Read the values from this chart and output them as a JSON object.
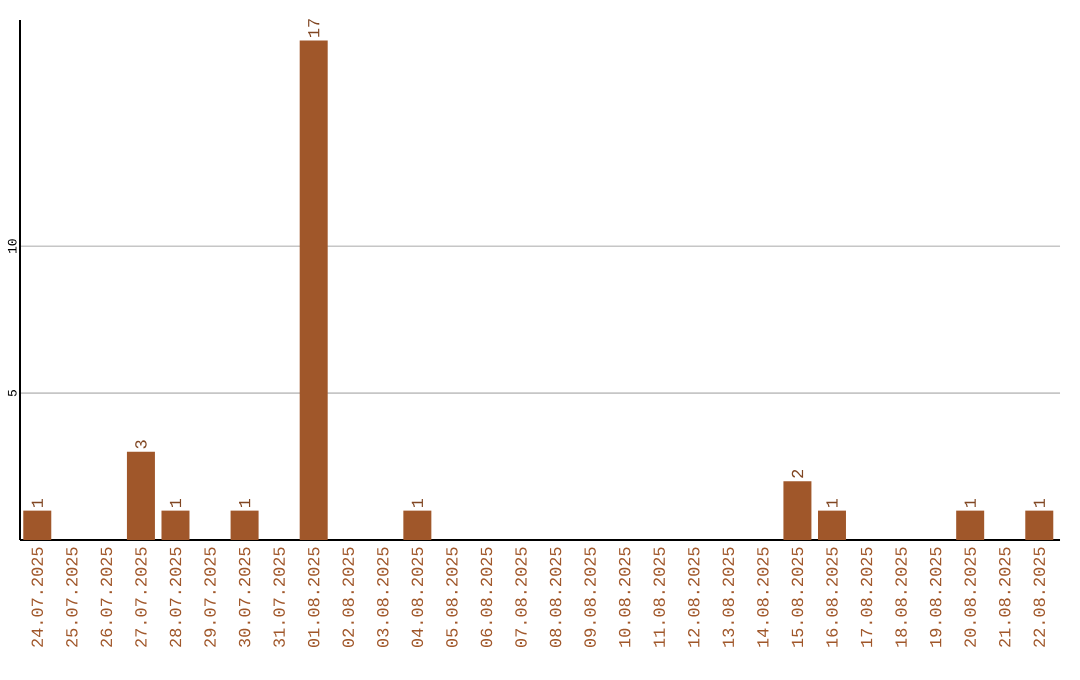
{
  "chart_data": {
    "type": "bar",
    "categories": [
      "24.07.2025",
      "25.07.2025",
      "26.07.2025",
      "27.07.2025",
      "28.07.2025",
      "29.07.2025",
      "30.07.2025",
      "31.07.2025",
      "01.08.2025",
      "02.08.2025",
      "03.08.2025",
      "04.08.2025",
      "05.08.2025",
      "06.08.2025",
      "07.08.2025",
      "08.08.2025",
      "09.08.2025",
      "10.08.2025",
      "11.08.2025",
      "12.08.2025",
      "13.08.2025",
      "14.08.2025",
      "15.08.2025",
      "16.08.2025",
      "17.08.2025",
      "18.08.2025",
      "19.08.2025",
      "20.08.2025",
      "21.08.2025",
      "22.08.2025"
    ],
    "values": [
      1,
      0,
      0,
      3,
      1,
      0,
      1,
      0,
      17,
      0,
      0,
      1,
      0,
      0,
      0,
      0,
      0,
      0,
      0,
      0,
      0,
      0,
      2,
      1,
      0,
      0,
      0,
      1,
      0,
      1
    ],
    "value_labels": [
      "1",
      null,
      null,
      "3",
      "1",
      null,
      "1",
      null,
      "17",
      null,
      null,
      "1",
      null,
      null,
      null,
      null,
      null,
      null,
      null,
      null,
      null,
      null,
      "2",
      "1",
      null,
      null,
      null,
      "1",
      null,
      "1"
    ],
    "color": "#a0572a",
    "ylim": [
      0,
      17.7
    ],
    "yticks": [
      5,
      10
    ],
    "grid": "y"
  }
}
